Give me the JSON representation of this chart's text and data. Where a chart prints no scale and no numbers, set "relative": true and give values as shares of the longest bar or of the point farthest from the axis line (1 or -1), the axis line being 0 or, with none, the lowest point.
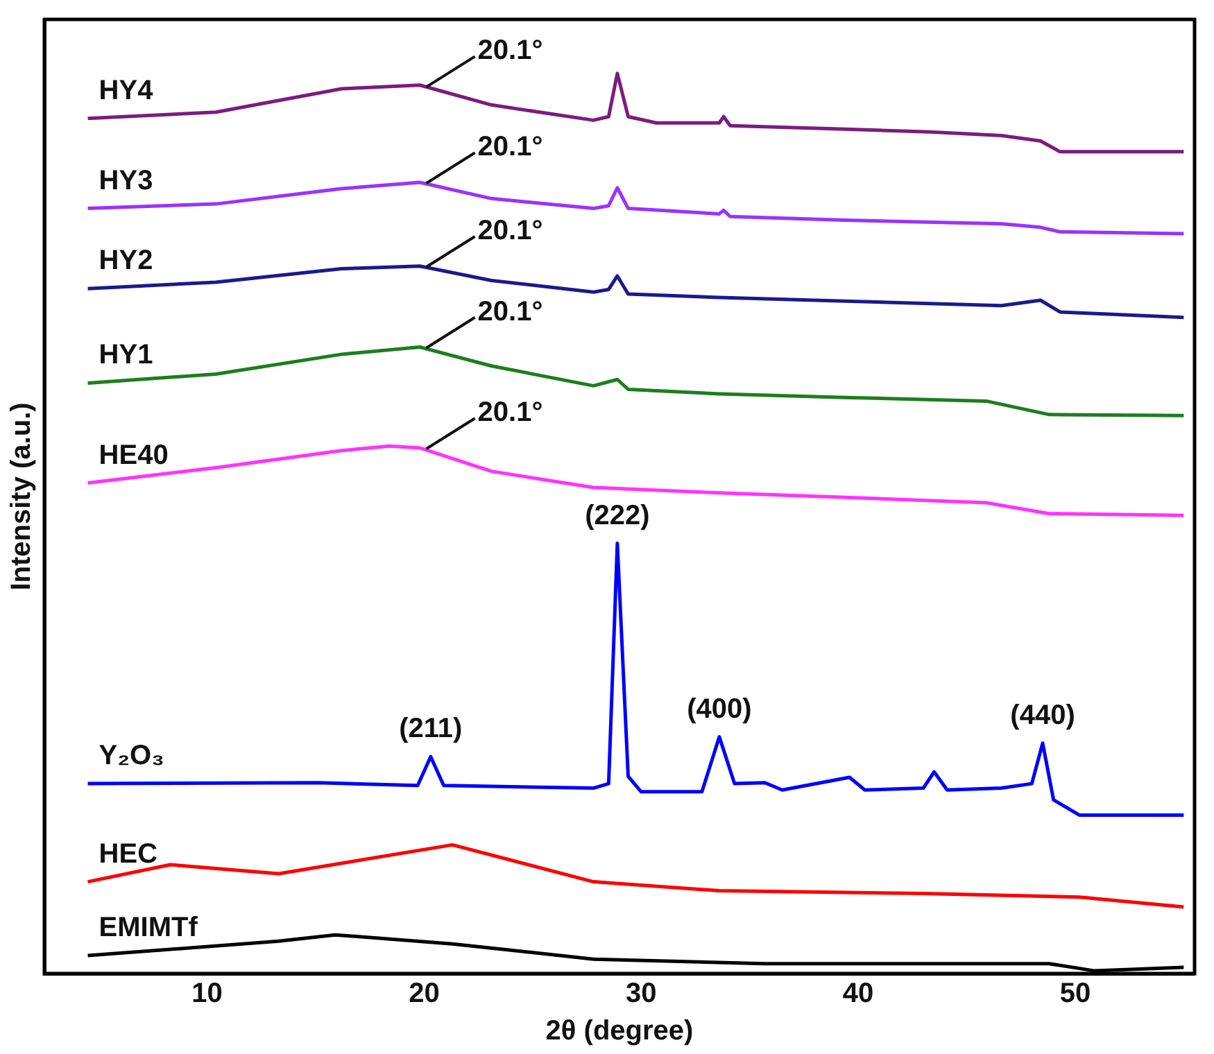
{
  "chart_data": {
    "type": "line",
    "relative": true,
    "xlabel": "2θ (degree)",
    "ylabel": "Intensity (a.u.)",
    "xlim": [
      2.5,
      55.5
    ],
    "xticks": [
      10,
      20,
      30,
      40,
      50
    ],
    "grid": false,
    "legend": false,
    "marker": "none",
    "line_style": "solid",
    "series": [
      {
        "name": "HY4",
        "color": "#7b1c7e",
        "x": [
          4.5,
          10.4,
          16.2,
          19.8,
          23.1,
          27.8,
          28.5,
          28.9,
          29.4,
          30.7,
          33.6,
          33.8,
          34.1,
          39.4,
          43.3,
          46.6,
          48.4,
          49.3,
          55
        ],
        "values": [
          0.95,
          0.957,
          0.983,
          0.987,
          0.965,
          0.948,
          0.952,
          1,
          0.952,
          0.945,
          0.945,
          0.952,
          0.942,
          0.938,
          0.935,
          0.931,
          0.925,
          0.913,
          0.913
        ]
      },
      {
        "name": "HY3",
        "color": "#9933ff",
        "x": [
          4.5,
          10.4,
          16.2,
          19.8,
          23.1,
          27.8,
          28.5,
          28.9,
          29.4,
          33.6,
          33.8,
          34.1,
          39.4,
          46.6,
          48.4,
          49.3,
          55
        ],
        "values": [
          0.85,
          0.855,
          0.872,
          0.879,
          0.861,
          0.85,
          0.853,
          0.873,
          0.85,
          0.844,
          0.848,
          0.841,
          0.837,
          0.833,
          0.829,
          0.824,
          0.822
        ]
      },
      {
        "name": "HY2",
        "color": "#1a1a8c",
        "x": [
          4.5,
          10.4,
          16.2,
          19.8,
          23.1,
          27.8,
          28.5,
          28.9,
          29.4,
          33.6,
          39.4,
          46.6,
          48.4,
          49.3,
          55
        ],
        "values": [
          0.761,
          0.768,
          0.783,
          0.786,
          0.77,
          0.757,
          0.76,
          0.775,
          0.755,
          0.751,
          0.747,
          0.742,
          0.748,
          0.735,
          0.729
        ]
      },
      {
        "name": "HY1",
        "color": "#1e7d1e",
        "x": [
          4.5,
          10.4,
          16.2,
          19.8,
          23.1,
          27.8,
          28.9,
          29.4,
          33.6,
          39.4,
          45.9,
          48.8,
          55
        ],
        "values": [
          0.656,
          0.666,
          0.688,
          0.696,
          0.675,
          0.653,
          0.66,
          0.649,
          0.644,
          0.64,
          0.636,
          0.621,
          0.62
        ]
      },
      {
        "name": "HE40",
        "color": "#ff33ff",
        "x": [
          4.5,
          10.4,
          16.2,
          18.4,
          19.8,
          23.1,
          27.8,
          33.6,
          39.4,
          45.9,
          48.8,
          55
        ],
        "values": [
          0.545,
          0.562,
          0.581,
          0.586,
          0.584,
          0.558,
          0.54,
          0.534,
          0.529,
          0.523,
          0.511,
          0.509
        ]
      },
      {
        "name": "Y₂O₃",
        "color": "#0000ff",
        "x": [
          4.5,
          15.1,
          19.7,
          20.3,
          20.9,
          27.8,
          28.5,
          28.9,
          29.4,
          30.0,
          32.8,
          33.6,
          34.3,
          35.7,
          36.5,
          39.6,
          40.3,
          43.0,
          43.5,
          44.1,
          46.6,
          48.0,
          48.5,
          49.0,
          50.2,
          55
        ],
        "values": [
          0.211,
          0.212,
          0.209,
          0.241,
          0.209,
          0.206,
          0.211,
          0.478,
          0.219,
          0.202,
          0.202,
          0.263,
          0.211,
          0.212,
          0.204,
          0.218,
          0.204,
          0.206,
          0.224,
          0.204,
          0.206,
          0.211,
          0.256,
          0.193,
          0.176,
          0.176
        ]
      },
      {
        "name": "HEC",
        "color": "#ff0000",
        "x": [
          4.5,
          8.3,
          13.3,
          21.3,
          27.8,
          33.6,
          43.0,
          50.2,
          55
        ],
        "values": [
          0.102,
          0.121,
          0.111,
          0.143,
          0.102,
          0.092,
          0.089,
          0.085,
          0.074
        ]
      },
      {
        "name": "EMIMTf",
        "color": "#000000",
        "x": [
          4.5,
          13.3,
          15.9,
          21.3,
          27.8,
          35.7,
          48.8,
          50.9,
          55
        ],
        "values": [
          0.02,
          0.036,
          0.043,
          0.033,
          0.016,
          0.011,
          0.011,
          0.003,
          0.007
        ]
      }
    ],
    "annotations": [
      {
        "text": "20.1°",
        "x": 20.1,
        "y": 0.985
      },
      {
        "text": "20.1°",
        "x": 20.1,
        "y": 0.878
      },
      {
        "text": "20.1°",
        "x": 20.1,
        "y": 0.785
      },
      {
        "text": "20.1°",
        "x": 20.1,
        "y": 0.695
      },
      {
        "text": "20.1°",
        "x": 20.1,
        "y": 0.583
      },
      {
        "text": "(211)",
        "x": 20.3,
        "y": 0.241
      },
      {
        "text": "(222)",
        "x": 28.9,
        "y": 0.478
      },
      {
        "text": "(400)",
        "x": 33.6,
        "y": 0.263
      },
      {
        "text": "(440)",
        "x": 48.5,
        "y": 0.256
      }
    ]
  }
}
